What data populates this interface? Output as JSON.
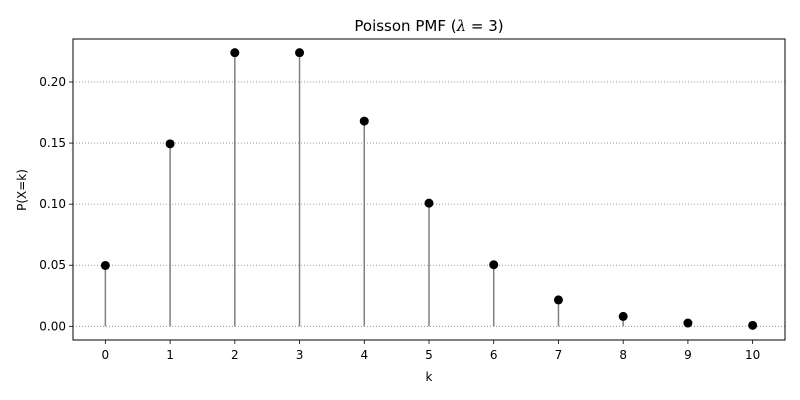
{
  "chart_data": {
    "type": "stem",
    "title": "Poisson PMF (λ = 3)",
    "title_parts": {
      "prefix": "Poisson PMF (",
      "symbol": "λ",
      "suffix": " = 3)"
    },
    "xlabel": "k",
    "ylabel": "P(X=k)",
    "x": [
      0,
      1,
      2,
      3,
      4,
      5,
      6,
      7,
      8,
      9,
      10
    ],
    "y": [
      0.0498,
      0.1494,
      0.224,
      0.224,
      0.168,
      0.1008,
      0.0504,
      0.0216,
      0.0081,
      0.0027,
      0.0008
    ],
    "xlim": [
      -0.5,
      10.5
    ],
    "ylim": [
      -0.0112,
      0.2352
    ],
    "xticks": [
      0,
      1,
      2,
      3,
      4,
      5,
      6,
      7,
      8,
      9,
      10
    ],
    "yticks": [
      0.0,
      0.05,
      0.1,
      0.15,
      0.2
    ],
    "ytick_labels": [
      "0.00",
      "0.05",
      "0.10",
      "0.15",
      "0.20"
    ],
    "grid": {
      "axis": "y",
      "style": "dotted"
    },
    "colors": {
      "stem": "#808080",
      "marker": "#000000",
      "grid": "#808080"
    }
  }
}
